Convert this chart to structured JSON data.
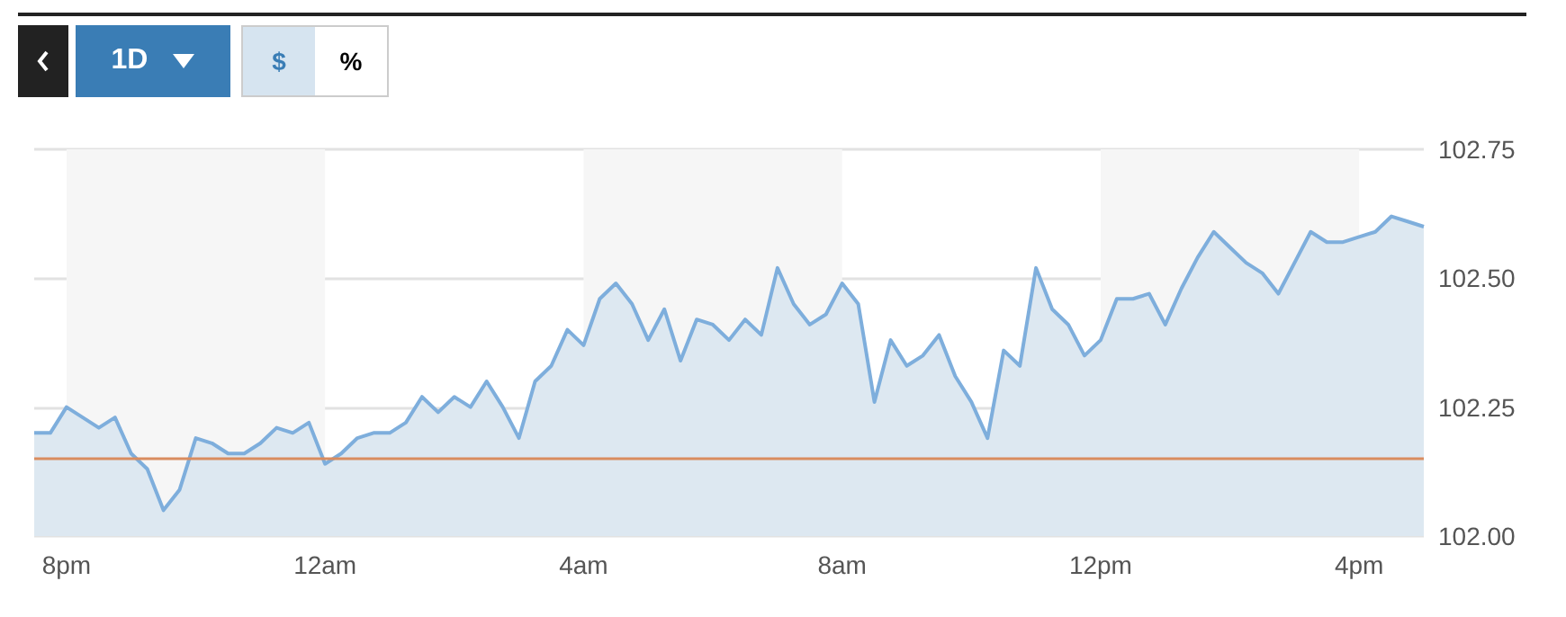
{
  "chart_data": {
    "type": "area",
    "annotations": [
      "1D",
      "$",
      "%"
    ],
    "categories": [
      null,
      null,
      "8pm",
      null,
      null,
      null,
      null,
      null,
      null,
      null,
      null,
      null,
      null,
      null,
      null,
      null,
      null,
      null,
      "12am",
      null,
      null,
      null,
      null,
      null,
      null,
      null,
      null,
      null,
      null,
      null,
      null,
      null,
      null,
      null,
      "4am",
      null,
      null,
      null,
      null,
      null,
      null,
      null,
      null,
      null,
      null,
      null,
      null,
      null,
      null,
      null,
      "8am",
      null,
      null,
      null,
      null,
      null,
      null,
      null,
      null,
      null,
      null,
      null,
      null,
      null,
      null,
      null,
      "12pm",
      null,
      null,
      null,
      null,
      null,
      null,
      null,
      null,
      null,
      null,
      null,
      null,
      null,
      null,
      null,
      "4pm",
      null,
      null,
      null,
      null
    ],
    "series": [
      {
        "color": "#7eaedc",
        "values": [
          102.2,
          102.2,
          102.25,
          102.23,
          102.21,
          102.23,
          102.16,
          102.13,
          102.05,
          102.09,
          102.19,
          102.18,
          102.16,
          102.16,
          102.18,
          102.21,
          102.2,
          102.22,
          102.14,
          102.16,
          102.19,
          102.2,
          102.2,
          102.22,
          102.27,
          102.24,
          102.27,
          102.25,
          102.3,
          102.25,
          102.19,
          102.3,
          102.33,
          102.4,
          102.37,
          102.46,
          102.49,
          102.45,
          102.38,
          102.44,
          102.34,
          102.42,
          102.41,
          102.38,
          102.42,
          102.39,
          102.52,
          102.45,
          102.41,
          102.43,
          102.49,
          102.45,
          102.26,
          102.38,
          102.33,
          102.35,
          102.39,
          102.31,
          102.26,
          102.19,
          102.36,
          102.33,
          102.52,
          102.44,
          102.41,
          102.35,
          102.38,
          102.46,
          102.46,
          102.47,
          102.41,
          102.48,
          102.54,
          102.59,
          102.56,
          102.53,
          102.51,
          102.47,
          102.53,
          102.59,
          102.57,
          102.57,
          102.58,
          102.59,
          102.62,
          102.61,
          102.6
        ]
      }
    ],
    "ylim": [
      102.0,
      102.75
    ],
    "yticks": [
      {
        "value": 102.0,
        "label": "102.00"
      },
      {
        "value": 102.25,
        "label": "102.25"
      },
      {
        "value": 102.5,
        "label": "102.50"
      },
      {
        "value": 102.75,
        "label": "102.75"
      }
    ],
    "ref_lines": [
      {
        "axis": "y",
        "value": 102.15,
        "color": "#d98c5f"
      }
    ],
    "bands": [
      {
        "axis": "x",
        "from": "8pm",
        "to": "12am",
        "color": "#f6f6f6"
      },
      {
        "axis": "x",
        "from": "4am",
        "to": "8am",
        "color": "#f6f6f6"
      },
      {
        "axis": "x",
        "from": "12pm",
        "to": "4pm",
        "color": "#f6f6f6"
      }
    ],
    "grid": "y",
    "marker": "none",
    "line_style": "solid"
  }
}
